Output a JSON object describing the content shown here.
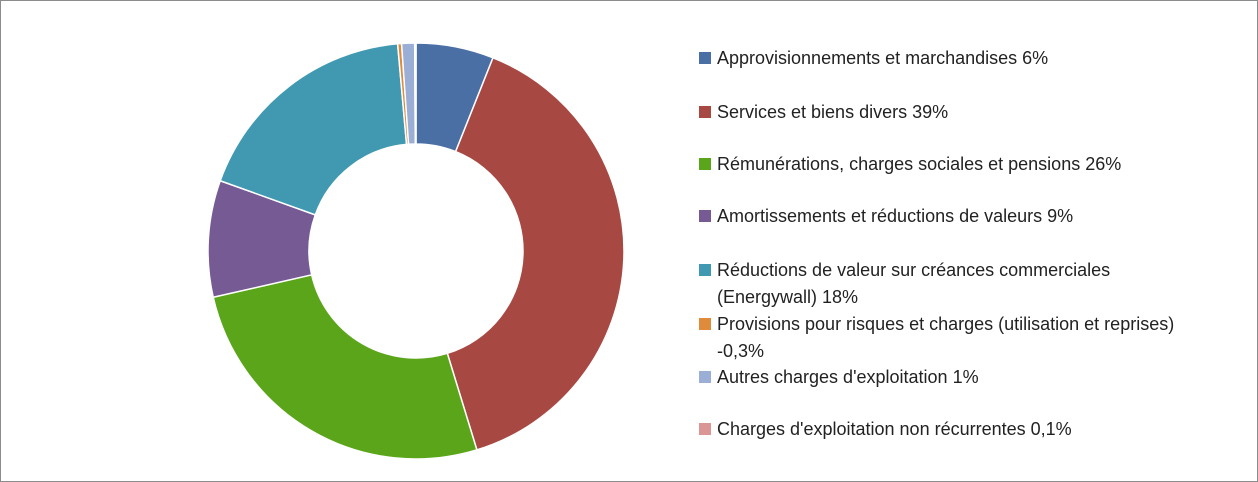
{
  "chart_data": {
    "type": "donut",
    "categories": [
      "Approvisionnements et marchandises 6%",
      "Services et biens divers 39%",
      "Rémunérations, charges sociales et pensions 26%",
      "Amortissements et réductions de valeurs  9%",
      "Réductions de valeur sur créances commerciales (Energywall) 18%",
      "Provisions pour risques et charges (utilisation et reprises) -0,3%",
      "Autres charges d'exploitation 1%",
      "Charges d'exploitation non récurrentes 0,1%"
    ],
    "values": [
      6,
      39,
      26,
      9,
      18,
      -0.3,
      1,
      0.1
    ],
    "colors": [
      "#4a6fa5",
      "#a84843",
      "#5aa51a",
      "#765a94",
      "#4099b0",
      "#e08a3c",
      "#9aaed6",
      "#d99694"
    ],
    "legend": "right"
  }
}
